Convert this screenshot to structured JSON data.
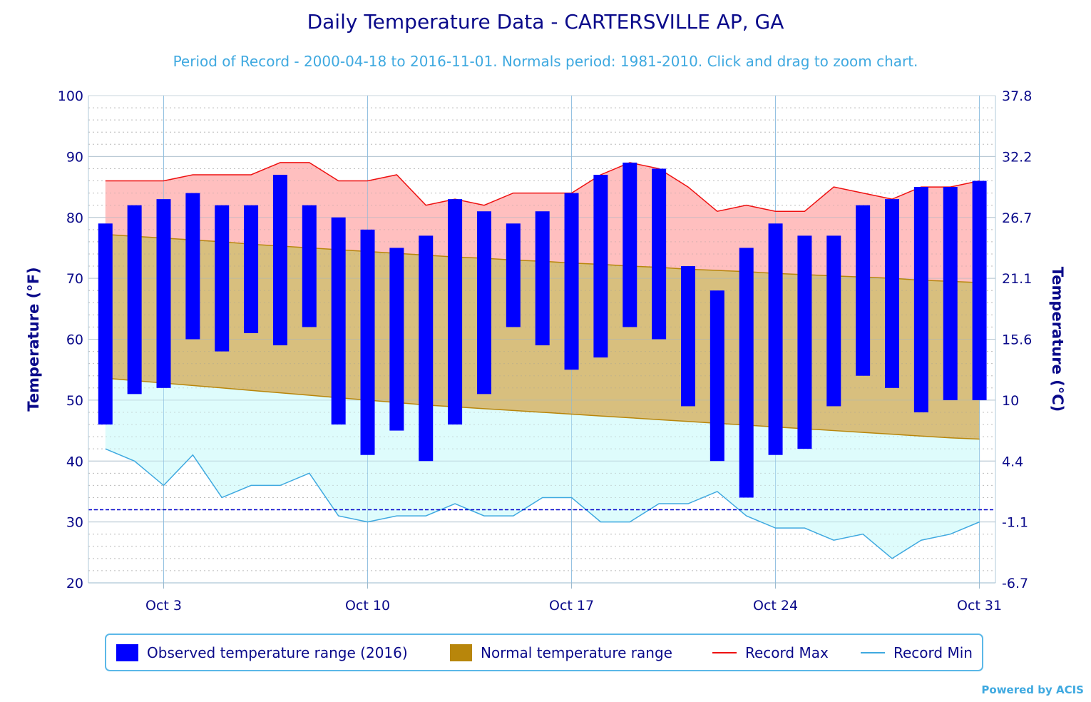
{
  "chart_data": {
    "type": "bar",
    "title": "Daily Temperature Data - CARTERSVILLE AP, GA",
    "subtitle": "Period of Record - 2000-04-18 to 2016-11-01. Normals period: 1981-2010. Click and drag to zoom chart.",
    "ylabel_left": "Temperature (°F)",
    "ylabel_right": "Temperature (°C)",
    "ylim": [
      20,
      100
    ],
    "yticks_left": [
      "20",
      "30",
      "40",
      "50",
      "60",
      "70",
      "80",
      "90",
      "100"
    ],
    "yticks_right": [
      "-6.7",
      "-1.1",
      "4.4",
      "10",
      "15.6",
      "21.1",
      "26.7",
      "32.2",
      "37.8"
    ],
    "xticks": [
      {
        "day": 3,
        "label": "Oct 3"
      },
      {
        "day": 10,
        "label": "Oct 10"
      },
      {
        "day": 17,
        "label": "Oct 17"
      },
      {
        "day": 24,
        "label": "Oct 24"
      },
      {
        "day": 31,
        "label": "Oct 31"
      }
    ],
    "freezing_line_f": 32,
    "days": [
      1,
      2,
      3,
      4,
      5,
      6,
      7,
      8,
      9,
      10,
      11,
      12,
      13,
      14,
      15,
      16,
      17,
      18,
      19,
      20,
      21,
      22,
      23,
      24,
      25,
      26,
      27,
      28,
      29,
      30,
      31
    ],
    "series": [
      {
        "name": "Observed temperature range (2016)",
        "color": "#0000ff",
        "high": [
          79,
          82,
          83,
          84,
          82,
          82,
          87,
          82,
          80,
          78,
          75,
          77,
          83,
          81,
          79,
          81,
          84,
          87,
          89,
          88,
          72,
          68,
          75,
          79,
          77,
          77,
          82,
          83,
          85,
          85,
          86
        ],
        "low": [
          46,
          51,
          52,
          60,
          58,
          61,
          59,
          62,
          46,
          41,
          45,
          40,
          46,
          51,
          62,
          59,
          55,
          57,
          62,
          60,
          49,
          40,
          34,
          41,
          42,
          49,
          54,
          52,
          48,
          50,
          50
        ]
      },
      {
        "name": "Normal temperature range",
        "color": "#b8860b",
        "high": [
          77.2,
          76.9,
          76.6,
          76.3,
          76.0,
          75.6,
          75.3,
          75.0,
          74.7,
          74.4,
          74.1,
          73.8,
          73.5,
          73.3,
          73.0,
          72.8,
          72.5,
          72.3,
          72.0,
          71.8,
          71.5,
          71.3,
          71.1,
          70.8,
          70.6,
          70.4,
          70.2,
          70.0,
          69.7,
          69.5,
          69.3
        ],
        "low": [
          53.6,
          53.2,
          52.8,
          52.4,
          52.0,
          51.6,
          51.2,
          50.8,
          50.4,
          50.0,
          49.6,
          49.2,
          48.9,
          48.6,
          48.3,
          48.0,
          47.7,
          47.4,
          47.1,
          46.8,
          46.5,
          46.2,
          45.9,
          45.6,
          45.3,
          45.0,
          44.7,
          44.4,
          44.1,
          43.8,
          43.6
        ]
      },
      {
        "name": "Record Max",
        "color": "#ee1111",
        "values": [
          86,
          86,
          86,
          87,
          87,
          87,
          89,
          89,
          86,
          86,
          87,
          82,
          83,
          82,
          84,
          84,
          84,
          87,
          89,
          88,
          85,
          81,
          82,
          81,
          81,
          85,
          84,
          83,
          85,
          85,
          86
        ]
      },
      {
        "name": "Record Min",
        "color": "#3fa9e0",
        "values": [
          42,
          40,
          36,
          41,
          34,
          36,
          36,
          38,
          31,
          30,
          31,
          31,
          33,
          31,
          31,
          34,
          34,
          30,
          30,
          33,
          33,
          35,
          31,
          29,
          29,
          27,
          28,
          24,
          27,
          28,
          30
        ]
      }
    ],
    "legend_placement": "bottom",
    "grid": true,
    "colors": {
      "record_max_fill": "#ffbcbc",
      "normal_fill": "#d8bf7e",
      "record_min_fill": "#dcfcfc",
      "axis_text": "#0a0a8a",
      "freezing_line": "#0000cc"
    }
  },
  "legend": {
    "observed": "Observed temperature range (2016)",
    "normal": "Normal temperature range",
    "record_max": "Record Max",
    "record_min": "Record Min"
  },
  "credit": "Powered by ACIS"
}
